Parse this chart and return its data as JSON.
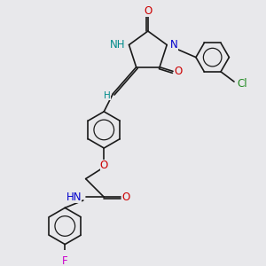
{
  "bg_color": "#e8e8eb",
  "bond_color": "#1a1a1a",
  "atom_colors": {
    "O": "#cc0000",
    "N": "#0000cc",
    "H": "#008b8b",
    "Cl": "#228b22",
    "F": "#cc00cc"
  },
  "font_size_atom": 8.5,
  "figsize": [
    3.0,
    3.0
  ],
  "dpi": 100
}
